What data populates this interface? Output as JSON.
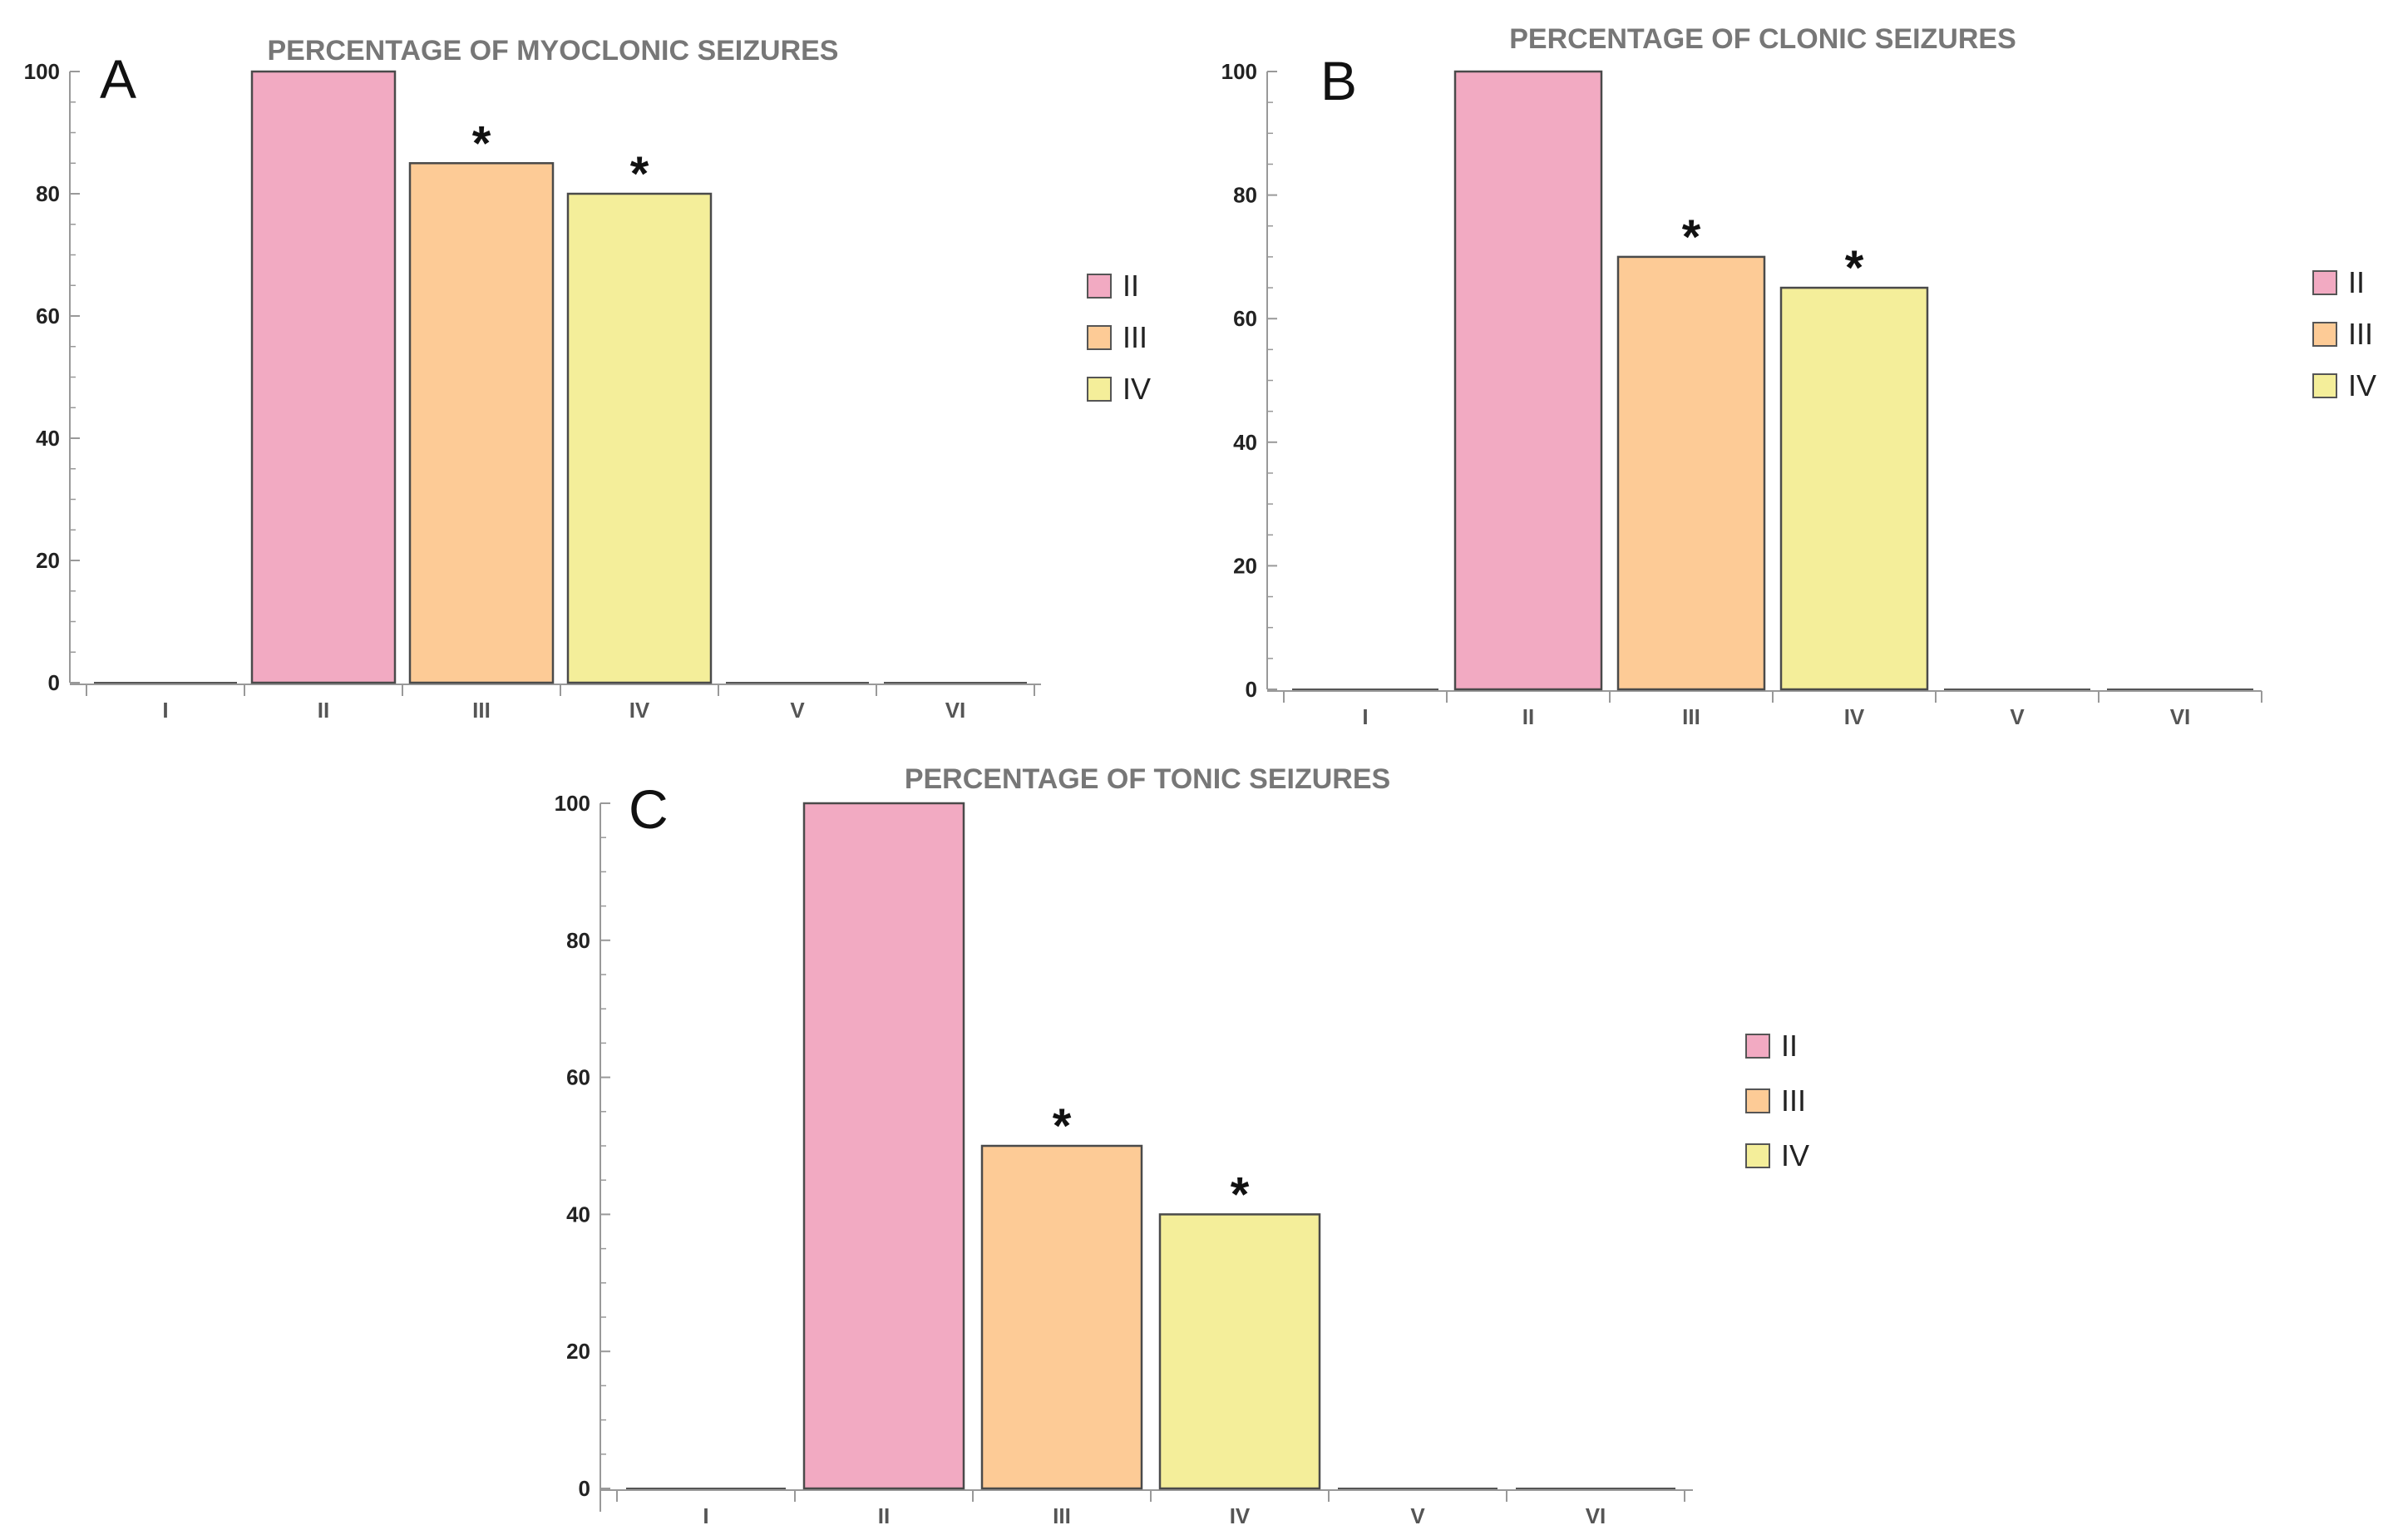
{
  "panels": [
    {
      "letter": "A"
    },
    {
      "letter": "B"
    },
    {
      "letter": "C"
    }
  ],
  "significance_marker": "*",
  "colors": {
    "II": "#f2aac2",
    "III": "#fdcb96",
    "IV": "#f4ee9a",
    "axis": "#999999",
    "title": "#777777"
  },
  "chart_data": [
    {
      "type": "bar",
      "title": "PERCENTAGE OF MYOCLONIC SEIZURES",
      "categories": [
        "I",
        "II",
        "III",
        "IV",
        "V",
        "VI"
      ],
      "values": [
        0,
        100,
        85,
        80,
        0,
        0
      ],
      "significant": [
        false,
        false,
        true,
        true,
        false,
        false
      ],
      "ylim": [
        0,
        100
      ],
      "yticks": [
        0,
        20,
        40,
        60,
        80,
        100
      ],
      "legend": [
        "II",
        "III",
        "IV"
      ],
      "legend_position": "right",
      "grid": false
    },
    {
      "type": "bar",
      "title": "PERCENTAGE OF CLONIC SEIZURES",
      "categories": [
        "I",
        "II",
        "III",
        "IV",
        "V",
        "VI"
      ],
      "values": [
        0,
        100,
        70,
        65,
        0,
        0
      ],
      "significant": [
        false,
        false,
        true,
        true,
        false,
        false
      ],
      "ylim": [
        0,
        100
      ],
      "yticks": [
        0,
        20,
        40,
        60,
        80,
        100
      ],
      "legend": [
        "II",
        "III",
        "IV"
      ],
      "legend_position": "right",
      "grid": false
    },
    {
      "type": "bar",
      "title": "PERCENTAGE OF TONIC SEIZURES",
      "categories": [
        "I",
        "II",
        "III",
        "IV",
        "V",
        "VI"
      ],
      "values": [
        0,
        100,
        50,
        40,
        0,
        0
      ],
      "significant": [
        false,
        false,
        true,
        true,
        false,
        false
      ],
      "ylim": [
        0,
        100
      ],
      "yticks": [
        0,
        20,
        40,
        60,
        80,
        100
      ],
      "legend": [
        "II",
        "III",
        "IV"
      ],
      "legend_position": "right",
      "grid": false
    }
  ]
}
